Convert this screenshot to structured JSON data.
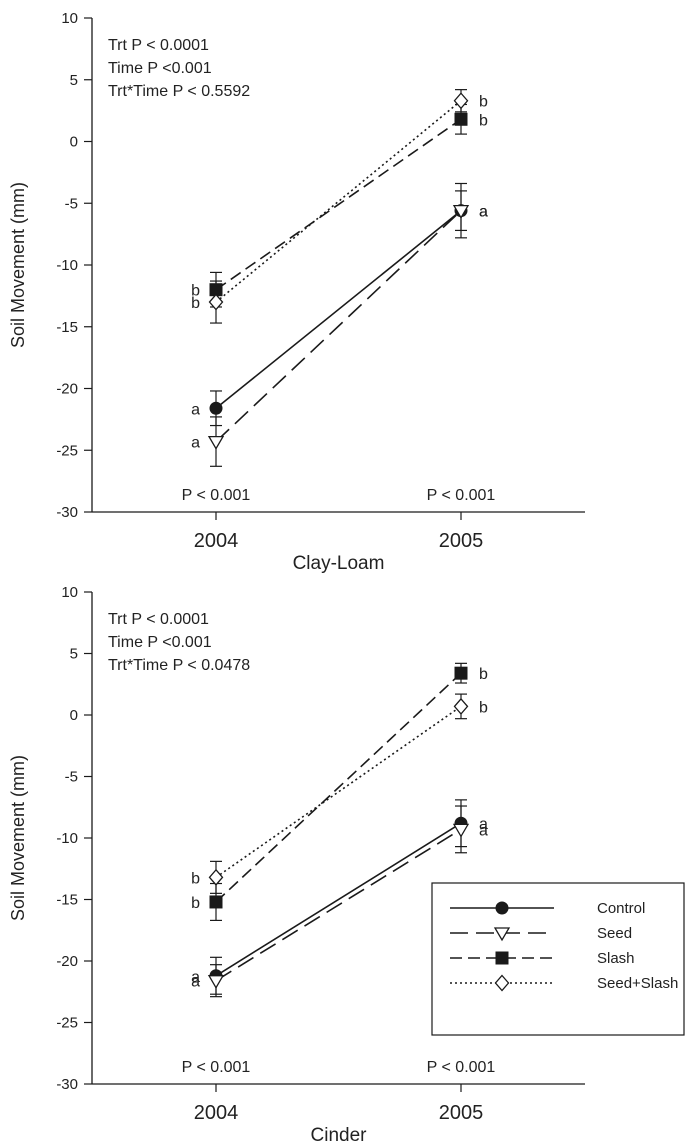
{
  "chart_data": [
    {
      "type": "line",
      "xlabel": "Clay-Loam",
      "ylabel": "Soil Movement (mm)",
      "categories": [
        "2004",
        "2005"
      ],
      "ylim": [
        -30,
        10
      ],
      "yticks": [
        10,
        5,
        0,
        -5,
        -10,
        -15,
        -20,
        -25,
        -30
      ],
      "grid": false,
      "annotations": [
        "Trt P < 0.0001",
        "Time P <0.001",
        "Trt*Time P < 0.5592"
      ],
      "p_labels": [
        "P < 0.001",
        "P < 0.001"
      ],
      "series": [
        {
          "name": "Control",
          "values": [
            -21.6,
            -5.6
          ],
          "errors": [
            1.4,
            1.6
          ],
          "letters": [
            "a",
            "a"
          ]
        },
        {
          "name": "Seed",
          "values": [
            -24.3,
            -5.6
          ],
          "errors": [
            2.0,
            2.2
          ],
          "letters": [
            "a",
            "a"
          ]
        },
        {
          "name": "Slash",
          "values": [
            -12.0,
            1.8
          ],
          "errors": [
            1.4,
            1.2
          ],
          "letters": [
            "b",
            "b"
          ]
        },
        {
          "name": "Seed+Slash",
          "values": [
            -13.0,
            3.3
          ],
          "errors": [
            1.7,
            0.9
          ],
          "letters": [
            "b",
            "b"
          ]
        }
      ]
    },
    {
      "type": "line",
      "xlabel": "Cinder",
      "ylabel": "Soil Movement (mm)",
      "categories": [
        "2004",
        "2005"
      ],
      "ylim": [
        -30,
        10
      ],
      "yticks": [
        10,
        5,
        0,
        -5,
        -10,
        -15,
        -20,
        -25,
        -30
      ],
      "grid": false,
      "legend_position": "lower-right",
      "annotations": [
        "Trt P < 0.0001",
        "Time P <0.001",
        "Trt*Time P < 0.0478"
      ],
      "p_labels": [
        "P < 0.001",
        "P < 0.001"
      ],
      "series": [
        {
          "name": "Control",
          "values": [
            -21.2,
            -8.8
          ],
          "errors": [
            1.5,
            1.9
          ],
          "letters": [
            "a",
            "a"
          ]
        },
        {
          "name": "Seed",
          "values": [
            -21.6,
            -9.3
          ],
          "errors": [
            1.3,
            1.9
          ],
          "letters": [
            "a",
            "a"
          ]
        },
        {
          "name": "Slash",
          "values": [
            -15.2,
            3.4
          ],
          "errors": [
            1.5,
            0.8
          ],
          "letters": [
            "b",
            "b"
          ]
        },
        {
          "name": "Seed+Slash",
          "values": [
            -13.2,
            0.7
          ],
          "errors": [
            1.3,
            1.0
          ],
          "letters": [
            "b",
            "b"
          ]
        }
      ]
    }
  ],
  "legend": {
    "items": [
      {
        "label": "Control",
        "marker": "filled-circle",
        "dash": "solid"
      },
      {
        "label": "Seed",
        "marker": "open-triangle-down",
        "dash": "long-dash"
      },
      {
        "label": "Slash",
        "marker": "filled-square",
        "dash": "medium-dash"
      },
      {
        "label": "Seed+Slash",
        "marker": "open-diamond",
        "dash": "dotted"
      }
    ]
  },
  "colors": {
    "ink": "#1a1a1a",
    "background": "#ffffff"
  }
}
